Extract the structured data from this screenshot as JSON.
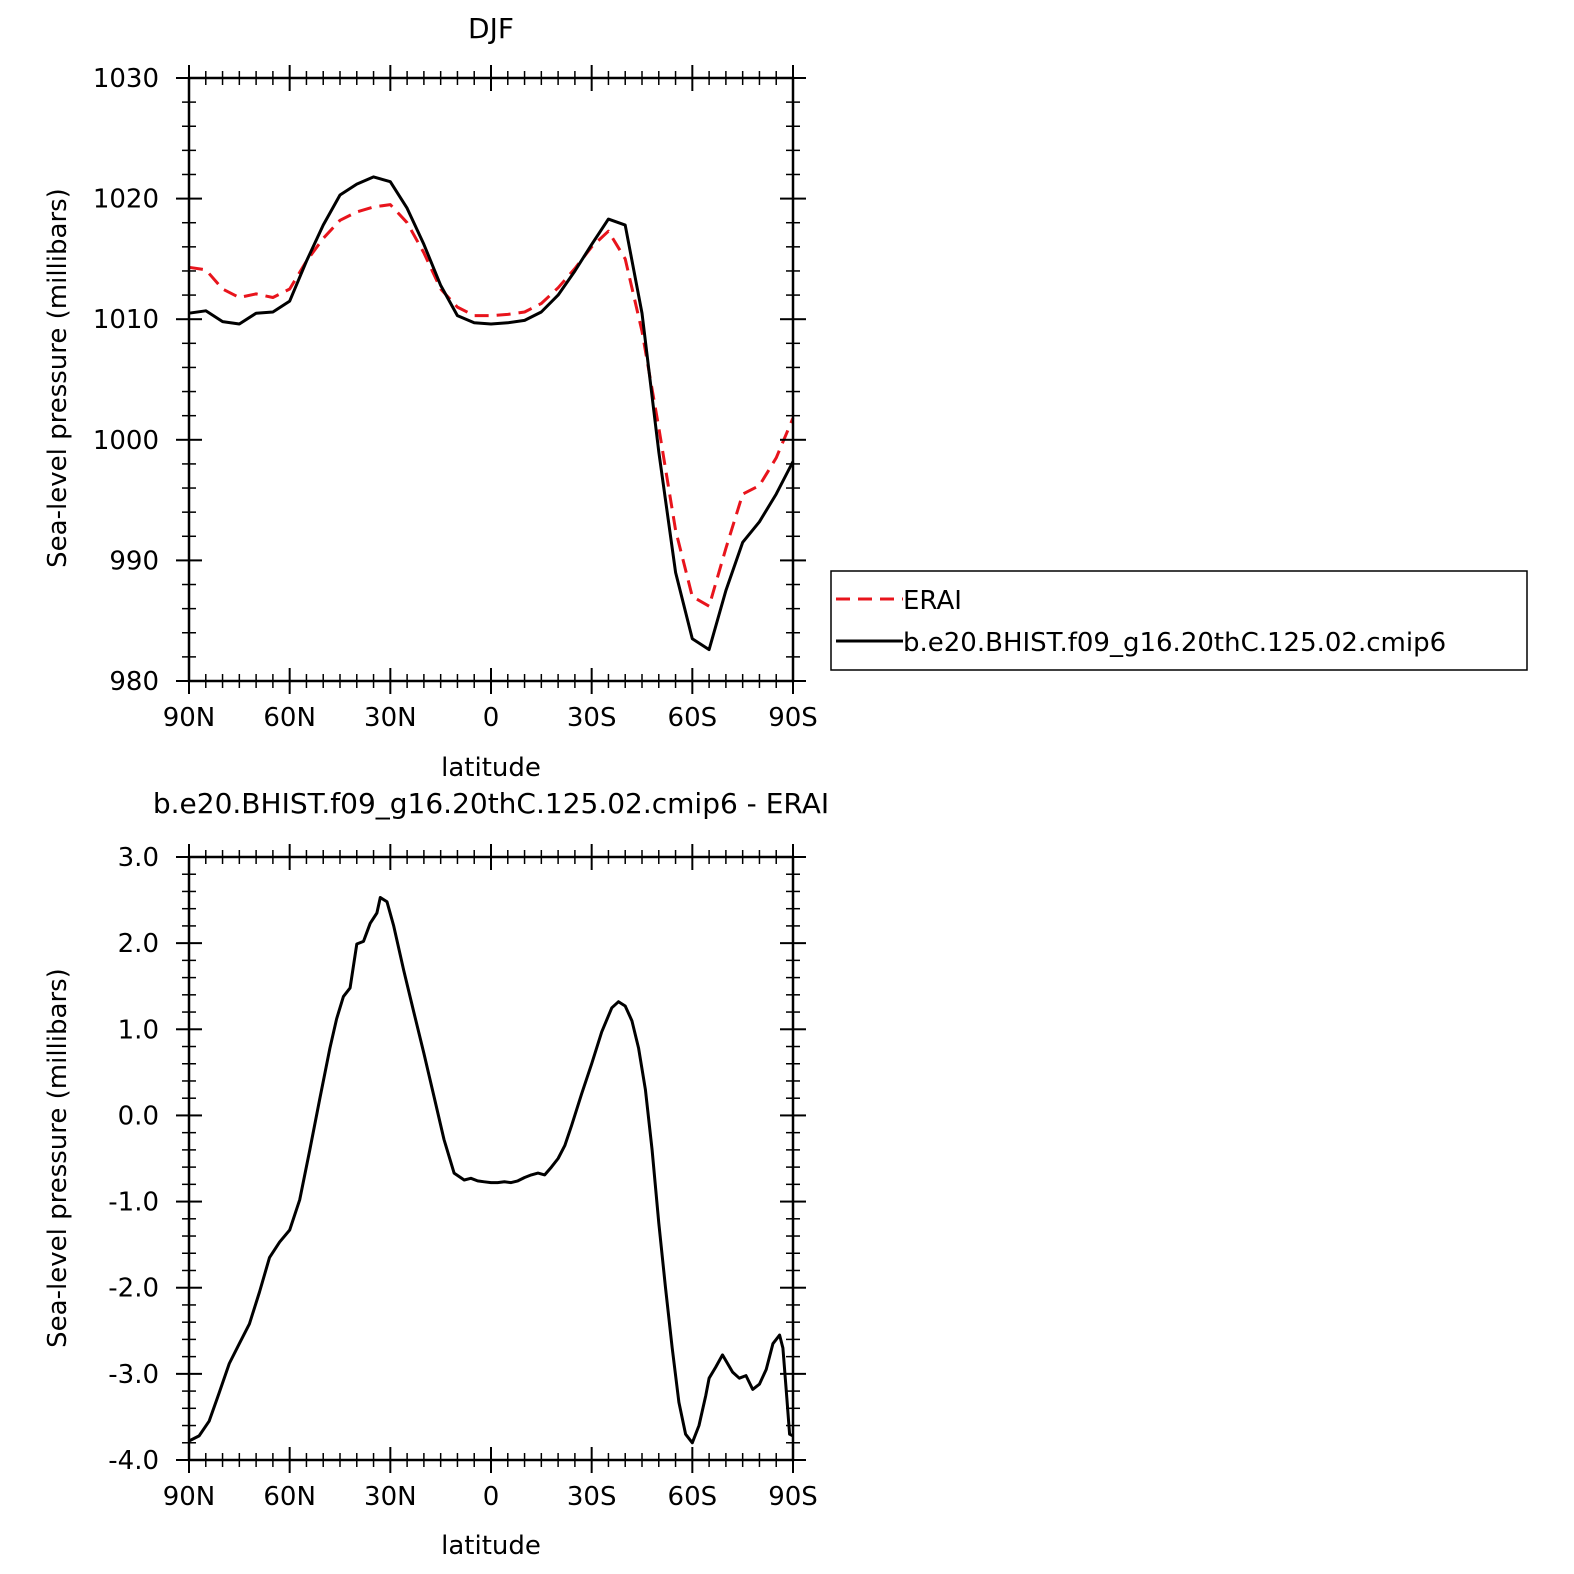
{
  "chart_data": [
    {
      "type": "line",
      "title": "DJF",
      "xlabel": "latitude",
      "ylabel": "Sea-level pressure (millibars)",
      "xlim": [
        90,
        -90
      ],
      "ylim": [
        980,
        1030
      ],
      "xticks": [
        90,
        60,
        30,
        0,
        -30,
        -60,
        -90
      ],
      "xtick_labels": [
        "90N",
        "60N",
        "30N",
        "0",
        "30S",
        "60S",
        "90S"
      ],
      "yticks": [
        980,
        990,
        1000,
        1010,
        1020,
        1030
      ],
      "ytick_labels": [
        "980",
        "990",
        "1000",
        "1010",
        "1020",
        "1030"
      ],
      "legend_position": "right",
      "series": [
        {
          "name": "ERAI",
          "color": "#e8141c",
          "dash": "dashed",
          "x": [
            90,
            85,
            80,
            75,
            70,
            65,
            60,
            55,
            50,
            45,
            40,
            35,
            30,
            25,
            20,
            15,
            10,
            5,
            0,
            -5,
            -10,
            -15,
            -20,
            -25,
            -30,
            -35,
            -40,
            -45,
            -50,
            -55,
            -60,
            -65,
            -70,
            -75,
            -80,
            -85,
            -90
          ],
          "y": [
            1014.3,
            1014.1,
            1012.5,
            1011.8,
            1012.1,
            1011.8,
            1012.5,
            1014.8,
            1016.7,
            1018.2,
            1018.9,
            1019.3,
            1019.5,
            1018.0,
            1015.5,
            1012.5,
            1011.0,
            1010.3,
            1010.3,
            1010.4,
            1010.6,
            1011.3,
            1012.6,
            1014.2,
            1016.0,
            1017.3,
            1015.0,
            1009.0,
            1001.0,
            992.5,
            987.0,
            986.2,
            991.0,
            995.5,
            996.2,
            998.5,
            1001.8
          ]
        },
        {
          "name": "b.e20.BHIST.f09_g16.20thC.125.02.cmip6",
          "color": "#000000",
          "dash": "solid",
          "x": [
            90,
            85,
            80,
            75,
            70,
            65,
            60,
            55,
            50,
            45,
            40,
            35,
            30,
            25,
            20,
            15,
            10,
            5,
            0,
            -5,
            -10,
            -15,
            -20,
            -25,
            -30,
            -35,
            -40,
            -45,
            -50,
            -55,
            -60,
            -65,
            -70,
            -75,
            -80,
            -85,
            -90
          ],
          "y": [
            1010.5,
            1010.7,
            1009.8,
            1009.6,
            1010.5,
            1010.6,
            1011.5,
            1014.8,
            1017.8,
            1020.3,
            1021.2,
            1021.8,
            1021.4,
            1019.2,
            1016.2,
            1012.8,
            1010.3,
            1009.7,
            1009.6,
            1009.7,
            1009.9,
            1010.6,
            1012.0,
            1014.0,
            1016.2,
            1018.3,
            1017.8,
            1010.5,
            999.0,
            989.0,
            983.5,
            982.6,
            987.5,
            991.5,
            993.2,
            995.5,
            998.2
          ]
        }
      ]
    },
    {
      "type": "line",
      "title": "b.e20.BHIST.f09_g16.20thC.125.02.cmip6 - ERAI",
      "xlabel": "latitude",
      "ylabel": "Sea-level pressure (millibars)",
      "xlim": [
        90,
        -90
      ],
      "ylim": [
        -4.0,
        3.0
      ],
      "xticks": [
        90,
        60,
        30,
        0,
        -30,
        -60,
        -90
      ],
      "xtick_labels": [
        "90N",
        "60N",
        "30N",
        "0",
        "30S",
        "60S",
        "90S"
      ],
      "yticks": [
        -4.0,
        -3.0,
        -2.0,
        -1.0,
        0.0,
        1.0,
        2.0,
        3.0
      ],
      "ytick_labels": [
        "-4.0",
        "-3.0",
        "-2.0",
        "-1.0",
        "0.0",
        "1.0",
        "2.0",
        "3.0"
      ],
      "series": [
        {
          "color": "#000000",
          "dash": "solid",
          "x": [
            90,
            87,
            84,
            81,
            78,
            75,
            72,
            69,
            66,
            63,
            60,
            57,
            54,
            51,
            48,
            46,
            44,
            42,
            40,
            38,
            36,
            34,
            33,
            31,
            29,
            26,
            23,
            20,
            17,
            14,
            11,
            8,
            6,
            4,
            2,
            0,
            -2,
            -4,
            -6,
            -8,
            -10,
            -12,
            -14,
            -16,
            -18,
            -20,
            -22,
            -24,
            -27,
            -30,
            -33,
            -36,
            -38,
            -40,
            -42,
            -44,
            -46,
            -48,
            -50,
            -52,
            -54,
            -56,
            -58,
            -60,
            -62,
            -64,
            -65,
            -67,
            -69,
            -72,
            -74,
            -76,
            -78,
            -80,
            -82,
            -84,
            -86,
            -87,
            -88,
            -89,
            -90
          ],
          "y": [
            -3.78,
            -3.72,
            -3.55,
            -3.22,
            -2.88,
            -2.65,
            -2.42,
            -2.05,
            -1.65,
            -1.47,
            -1.33,
            -0.98,
            -0.4,
            0.2,
            0.78,
            1.12,
            1.38,
            1.48,
            1.99,
            2.02,
            2.23,
            2.35,
            2.53,
            2.48,
            2.2,
            1.68,
            1.2,
            0.72,
            0.22,
            -0.28,
            -0.67,
            -0.75,
            -0.73,
            -0.76,
            -0.77,
            -0.78,
            -0.78,
            -0.77,
            -0.78,
            -0.76,
            -0.72,
            -0.69,
            -0.67,
            -0.69,
            -0.6,
            -0.5,
            -0.35,
            -0.12,
            0.25,
            0.6,
            0.97,
            1.25,
            1.32,
            1.27,
            1.1,
            0.78,
            0.3,
            -0.4,
            -1.25,
            -2.0,
            -2.7,
            -3.33,
            -3.7,
            -3.8,
            -3.6,
            -3.25,
            -3.05,
            -2.92,
            -2.78,
            -2.98,
            -3.05,
            -3.02,
            -3.18,
            -3.12,
            -2.95,
            -2.65,
            -2.55,
            -2.7,
            -3.2,
            -3.7,
            -3.72
          ]
        }
      ]
    }
  ],
  "legend": {
    "items": [
      {
        "label": "ERAI"
      },
      {
        "label": "b.e20.BHIST.f09_g16.20thC.125.02.cmip6"
      }
    ]
  }
}
